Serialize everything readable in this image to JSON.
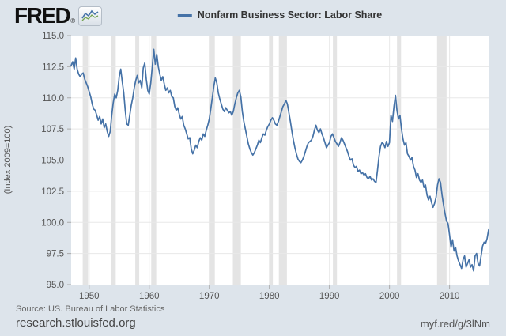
{
  "header": {
    "logo_text": "FRED",
    "logo_registered": "®",
    "legend_label": "Nonfarm Business Sector: Labor Share"
  },
  "footer": {
    "source": "Source: US. Bureau of Labor Statistics",
    "site": "research.stlouisfed.org",
    "short_url": "myf.red/g/3lNm"
  },
  "chart_data": {
    "type": "line",
    "title": "Nonfarm Business Sector: Labor Share",
    "ylabel": "(Index 2009=100)",
    "series_name": "Nonfarm Business Sector: Labor Share",
    "frequency": "quarterly",
    "x_start": 1947.0,
    "x_step": 0.25,
    "xlim": [
      1947.0,
      2016.5
    ],
    "ylim": [
      95.0,
      115.0
    ],
    "y_ticks": [
      95.0,
      97.5,
      100.0,
      102.5,
      105.0,
      107.5,
      110.0,
      112.5,
      115.0
    ],
    "y_tick_labels": [
      "95.0",
      "97.5",
      "100.0",
      "102.5",
      "105.0",
      "107.5",
      "110.0",
      "112.5",
      "115.0"
    ],
    "x_ticks": [
      1950,
      1960,
      1970,
      1980,
      1990,
      2000,
      2010
    ],
    "grid_on": true,
    "legend_position": "top-center",
    "line_color": "#4572a7",
    "recession_color": "#e4e4e4",
    "grid_color": "#e8e8e8",
    "tick_color": "#aaaaaa",
    "tick_label_color": "#555555",
    "plot_bg": "#ffffff",
    "page_bg": "#dde4eb",
    "recessions": [
      [
        1948.92,
        1949.83
      ],
      [
        1953.58,
        1954.42
      ],
      [
        1957.67,
        1958.33
      ],
      [
        1960.33,
        1961.17
      ],
      [
        1969.92,
        1970.92
      ],
      [
        1973.92,
        1975.25
      ],
      [
        1980.08,
        1980.58
      ],
      [
        1981.58,
        1982.92
      ],
      [
        1990.58,
        1991.25
      ],
      [
        2001.25,
        2001.92
      ],
      [
        2007.92,
        2009.5
      ]
    ],
    "values": [
      112.6,
      112.9,
      112.3,
      113.2,
      112.3,
      111.9,
      111.7,
      111.9,
      112.0,
      111.5,
      111.2,
      110.9,
      110.5,
      110.1,
      109.5,
      109.1,
      109.0,
      108.6,
      108.2,
      108.5,
      107.9,
      108.3,
      107.6,
      107.9,
      107.3,
      106.9,
      107.3,
      108.6,
      109.6,
      110.3,
      110.0,
      110.6,
      111.7,
      112.3,
      111.3,
      110.4,
      109.0,
      107.9,
      107.8,
      108.6,
      109.4,
      110.0,
      110.8,
      111.4,
      111.8,
      111.2,
      111.4,
      110.8,
      112.4,
      112.8,
      111.5,
      110.6,
      110.3,
      111.2,
      112.5,
      113.9,
      112.7,
      113.5,
      112.5,
      111.9,
      111.4,
      111.7,
      111.1,
      110.6,
      110.8,
      110.4,
      110.6,
      110.1,
      110.0,
      109.3,
      109.0,
      109.2,
      108.7,
      108.3,
      108.5,
      107.8,
      107.5,
      107.1,
      106.7,
      106.8,
      105.9,
      105.5,
      105.8,
      106.2,
      106.0,
      106.5,
      106.8,
      106.6,
      107.1,
      106.9,
      107.4,
      107.8,
      108.3,
      109.1,
      110.0,
      110.9,
      111.6,
      111.2,
      110.4,
      109.9,
      109.5,
      109.1,
      108.9,
      109.2,
      109.0,
      108.8,
      108.9,
      108.6,
      108.9,
      109.5,
      110.0,
      110.4,
      110.6,
      110.1,
      108.9,
      108.1,
      107.5,
      106.9,
      106.3,
      105.9,
      105.6,
      105.4,
      105.6,
      105.9,
      106.2,
      106.6,
      106.4,
      106.8,
      107.1,
      107.0,
      107.4,
      107.7,
      107.9,
      108.2,
      108.4,
      108.2,
      107.9,
      107.8,
      108.1,
      108.5,
      108.9,
      109.3,
      109.5,
      109.8,
      109.5,
      108.8,
      108.1,
      107.3,
      106.6,
      106.0,
      105.5,
      105.1,
      104.9,
      104.8,
      105.0,
      105.3,
      105.7,
      106.1,
      106.4,
      106.5,
      106.6,
      106.9,
      107.4,
      107.8,
      107.4,
      107.2,
      107.5,
      107.1,
      106.8,
      106.4,
      106.0,
      106.2,
      106.4,
      106.9,
      107.1,
      106.8,
      106.5,
      106.3,
      106.1,
      106.4,
      106.8,
      106.6,
      106.3,
      106.0,
      105.7,
      105.3,
      105.0,
      105.1,
      104.6,
      104.4,
      104.5,
      104.1,
      104.2,
      103.9,
      104.0,
      103.8,
      103.9,
      103.6,
      103.5,
      103.7,
      103.4,
      103.5,
      103.3,
      103.2,
      104.2,
      105.3,
      106.1,
      106.4,
      106.3,
      106.0,
      106.5,
      106.1,
      106.4,
      108.6,
      108.1,
      109.3,
      110.2,
      109.0,
      108.3,
      108.6,
      107.5,
      106.7,
      106.2,
      106.4,
      105.5,
      105.3,
      105.0,
      105.2,
      104.5,
      104.2,
      103.6,
      103.9,
      103.4,
      103.2,
      103.4,
      102.8,
      103.0,
      102.2,
      101.8,
      102.1,
      101.6,
      101.2,
      101.5,
      102.0,
      103.0,
      103.5,
      103.2,
      102.2,
      101.4,
      100.7,
      100.1,
      99.9,
      99.0,
      98.0,
      98.6,
      97.7,
      98.0,
      97.3,
      96.9,
      96.6,
      96.3,
      97.0,
      97.3,
      96.4,
      96.7,
      97.0,
      96.4,
      96.6,
      96.1,
      97.3,
      97.5,
      96.7,
      96.5,
      97.3,
      98.1,
      98.4,
      98.3,
      98.7,
      99.4
    ]
  }
}
